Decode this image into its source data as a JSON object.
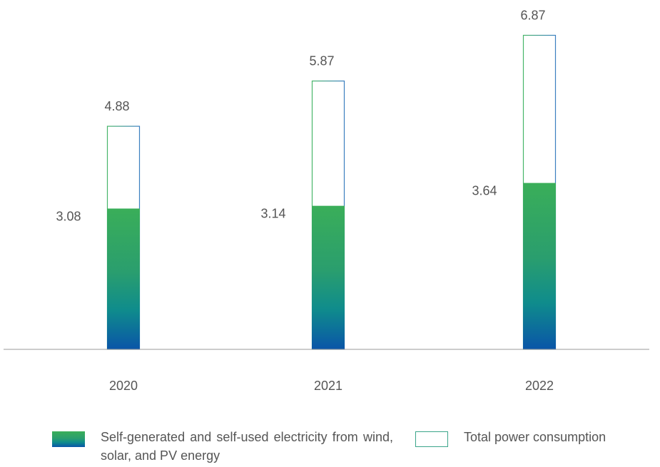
{
  "chart_data": {
    "type": "bar",
    "categories": [
      "2020",
      "2021",
      "2022"
    ],
    "series": [
      {
        "name": "Self-generated and self-used electricity from wind, solar, and PV energy",
        "values": [
          3.08,
          3.14,
          3.64
        ]
      },
      {
        "name": "Total power consumption",
        "values": [
          4.88,
          5.87,
          6.87
        ]
      }
    ],
    "value_labels": {
      "self_generated": [
        "3.08",
        "3.14",
        "3.64"
      ],
      "total": [
        "4.88",
        "5.87",
        "6.87"
      ]
    },
    "ylim": [
      0,
      7.6
    ],
    "grid": false,
    "legend": "bottom",
    "colors": {
      "self_generated_top": "#3aae59",
      "self_generated_bottom": "#0a55a8",
      "total_outline": "#3ba58a",
      "baseline": "#999999",
      "text": "#555555"
    }
  },
  "legend": {
    "self_generated": "Self-generated and self-used electricity from wind, solar, and PV energy",
    "total": "Total power consumption"
  }
}
